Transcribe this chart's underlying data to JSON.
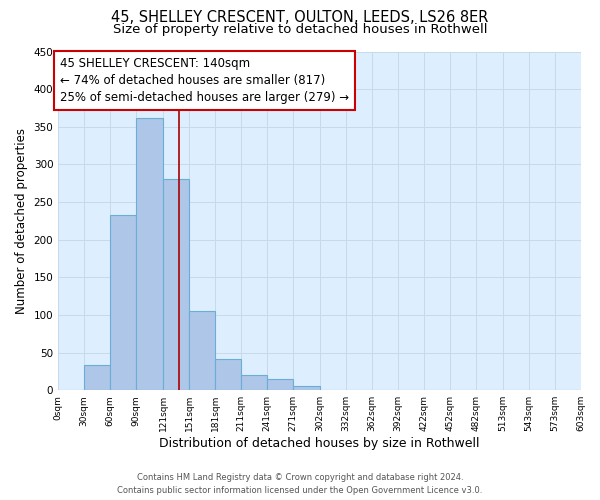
{
  "title": "45, SHELLEY CRESCENT, OULTON, LEEDS, LS26 8ER",
  "subtitle": "Size of property relative to detached houses in Rothwell",
  "xlabel": "Distribution of detached houses by size in Rothwell",
  "ylabel": "Number of detached properties",
  "bar_edges": [
    0,
    30,
    60,
    90,
    121,
    151,
    181,
    211,
    241,
    271,
    302,
    332,
    362,
    392,
    422,
    452,
    482,
    513,
    543,
    573,
    603
  ],
  "bar_heights": [
    0,
    34,
    233,
    362,
    280,
    105,
    41,
    20,
    15,
    5,
    0,
    0,
    0,
    0,
    0,
    0,
    0,
    0,
    0,
    0
  ],
  "bar_color": "#aec6e8",
  "bar_edgecolor": "#6aaed6",
  "property_line_x": 140,
  "property_line_color": "#aa0000",
  "annotation_line1": "45 SHELLEY CRESCENT: 140sqm",
  "annotation_line2": "← 74% of detached houses are smaller (817)",
  "annotation_line3": "25% of semi-detached houses are larger (279) →",
  "box_edgecolor": "#cc0000",
  "ylim": [
    0,
    450
  ],
  "xlim": [
    0,
    603
  ],
  "yticks": [
    0,
    50,
    100,
    150,
    200,
    250,
    300,
    350,
    400,
    450
  ],
  "xtick_labels": [
    "0sqm",
    "30sqm",
    "60sqm",
    "90sqm",
    "121sqm",
    "151sqm",
    "181sqm",
    "211sqm",
    "241sqm",
    "271sqm",
    "302sqm",
    "332sqm",
    "362sqm",
    "392sqm",
    "422sqm",
    "452sqm",
    "482sqm",
    "513sqm",
    "543sqm",
    "573sqm",
    "603sqm"
  ],
  "xtick_positions": [
    0,
    30,
    60,
    90,
    121,
    151,
    181,
    211,
    241,
    271,
    302,
    332,
    362,
    392,
    422,
    452,
    482,
    513,
    543,
    573,
    603
  ],
  "grid_color": "#c8daea",
  "background_color": "#ddeeff",
  "footer_line1": "Contains HM Land Registry data © Crown copyright and database right 2024.",
  "footer_line2": "Contains public sector information licensed under the Open Government Licence v3.0.",
  "title_fontsize": 10.5,
  "subtitle_fontsize": 9.5,
  "xlabel_fontsize": 9,
  "ylabel_fontsize": 8.5,
  "annot_fontsize": 8.5
}
